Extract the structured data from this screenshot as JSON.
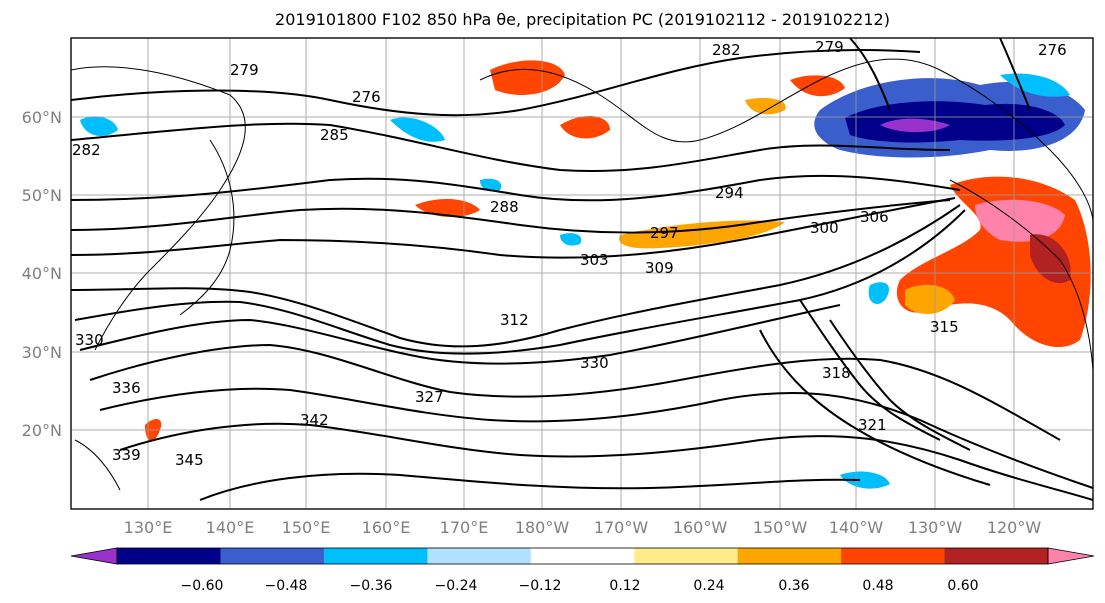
{
  "title": "2019101800 F102 850 hPa θe, precipitation PC (2019102112 - 2019102212)",
  "map": {
    "type": "map",
    "region": "North Pacific",
    "lat_range": [
      10,
      70
    ],
    "lon_range": [
      120,
      245
    ],
    "grid": true,
    "lat_labels": [
      "20°N",
      "30°N",
      "40°N",
      "50°N",
      "60°N"
    ],
    "lon_labels": [
      "130°E",
      "140°E",
      "150°E",
      "160°E",
      "170°E",
      "180°W",
      "170°W",
      "160°W",
      "150°W",
      "140°W",
      "130°W",
      "120°W"
    ],
    "contour_variable": "850 hPa θe (K)",
    "contour_labels": [
      "279",
      "276",
      "285",
      "282",
      "288",
      "294",
      "297",
      "303",
      "309",
      "300",
      "306",
      "312",
      "315",
      "318",
      "321",
      "327",
      "330",
      "336",
      "339",
      "342",
      "345",
      "330",
      "279",
      "282",
      "276"
    ]
  },
  "colorbar": {
    "ticks": [
      "−0.60",
      "−0.48",
      "−0.36",
      "−0.24",
      "−0.12",
      "0.12",
      "0.24",
      "0.36",
      "0.48",
      "0.60"
    ],
    "colors": [
      "#9932cc",
      "#00008b",
      "#3a5fcd",
      "#00bfff",
      "#b0e2ff",
      "#ffffff",
      "#ffec8b",
      "#ffa500",
      "#ff4500",
      "#b22222",
      "#ff82ab"
    ]
  }
}
